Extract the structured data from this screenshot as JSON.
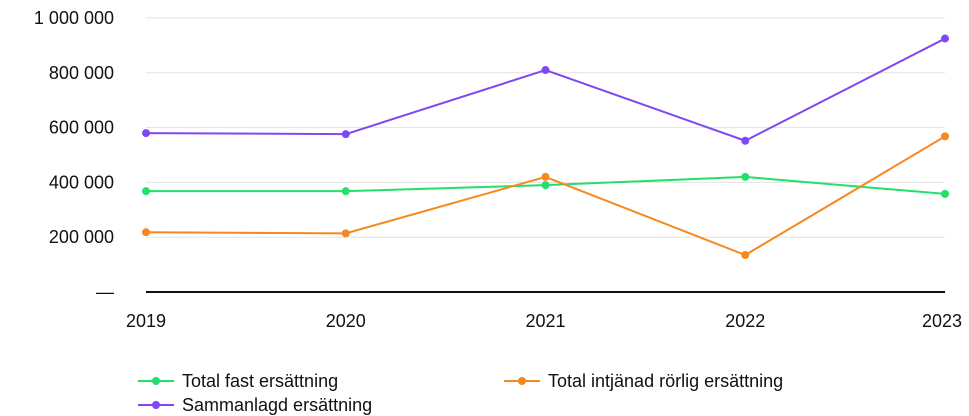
{
  "chart_data": {
    "type": "line",
    "categories": [
      "2019",
      "2020",
      "2021",
      "2022",
      "2023"
    ],
    "y_tick_labels": [
      "—",
      "200 000",
      "400 000",
      "600 000",
      "800 000",
      "1 000 000"
    ],
    "ylim": [
      0,
      1000000
    ],
    "grid": true,
    "legend_position": "bottom",
    "series": [
      {
        "name": "Total fast ersättning",
        "color": "#22e06b",
        "values": [
          368000,
          368000,
          390000,
          420000,
          358000
        ]
      },
      {
        "name": "Total intjänad rörlig ersättning",
        "color": "#f5891f",
        "values": [
          218000,
          214000,
          420000,
          135000,
          568000
        ]
      },
      {
        "name": "Sammanlagd ersättning",
        "color": "#8048f2",
        "values": [
          580000,
          576000,
          810000,
          552000,
          925000
        ]
      }
    ]
  }
}
